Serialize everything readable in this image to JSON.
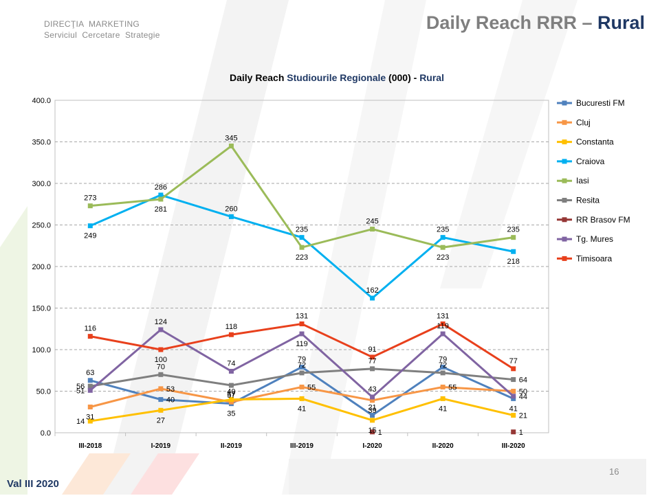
{
  "header": {
    "org_line1": "DIRECŢIA  MARKETING",
    "org_line2": "Serviciul  Cercetare  Strategie",
    "title_main": "Daily Reach RRR – ",
    "title_accent": "Rural"
  },
  "footer": {
    "wave_label": "Val III 2020",
    "page_number": "16"
  },
  "colors": {
    "title_gray": "#7f7f7f",
    "accent_navy": "#1f3864"
  },
  "chart_data": {
    "type": "line",
    "title_parts": [
      "Daily Reach ",
      "Studiourile Regionale",
      " (000) - ",
      "Rural"
    ],
    "xlabel": "",
    "ylabel": "",
    "ylim": [
      0,
      400
    ],
    "yticks": [
      "0.0",
      "50.0",
      "100.0",
      "150.0",
      "200.0",
      "250.0",
      "300.0",
      "350.0",
      "400.0"
    ],
    "categories": [
      "III-2018",
      "I-2019",
      "II-2019",
      "III-2019",
      "I-2020",
      "II-2020",
      "III-2020"
    ],
    "grid": "horizontal dashed",
    "legend_position": "right",
    "series": [
      {
        "name": "Bucuresti FM",
        "color": "#4f81bd",
        "values": [
          63,
          40,
          35,
          79,
          21,
          79,
          41
        ]
      },
      {
        "name": "Cluj",
        "color": "#f79646",
        "values": [
          31,
          53,
          37,
          55,
          39,
          55,
          50
        ]
      },
      {
        "name": "Constanta",
        "color": "#ffc000",
        "values": [
          14,
          27,
          40,
          41,
          15,
          41,
          21
        ]
      },
      {
        "name": "Craiova",
        "color": "#00b0f0",
        "values": [
          249,
          286,
          260,
          235,
          162,
          235,
          218
        ]
      },
      {
        "name": "Iasi",
        "color": "#9bbb59",
        "values": [
          273,
          281,
          345,
          223,
          245,
          223,
          235
        ]
      },
      {
        "name": "Resita",
        "color": "#7f7f7f",
        "values": [
          56,
          70,
          57,
          72,
          77,
          72,
          64
        ]
      },
      {
        "name": "RR Brasov FM",
        "color": "#953735",
        "values": [
          null,
          null,
          null,
          null,
          1,
          null,
          1
        ]
      },
      {
        "name": "Tg. Mures",
        "color": "#8064a2",
        "values": [
          51,
          124,
          74,
          119,
          43,
          119,
          44
        ]
      },
      {
        "name": "Timisoara",
        "color": "#e8401c",
        "values": [
          116,
          100,
          118,
          131,
          91,
          131,
          77
        ]
      }
    ]
  }
}
